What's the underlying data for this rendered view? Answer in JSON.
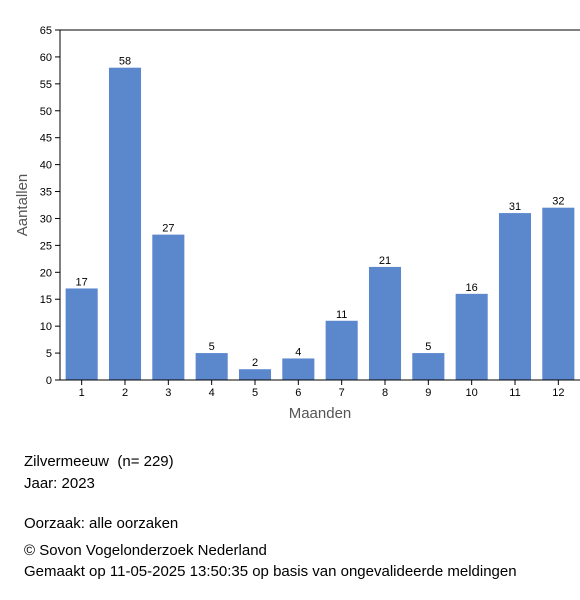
{
  "chart_data": {
    "type": "bar",
    "xlabel": "Maanden",
    "ylabel": "Aantallen",
    "categories": [
      "1",
      "2",
      "3",
      "4",
      "5",
      "6",
      "7",
      "8",
      "9",
      "10",
      "11",
      "12"
    ],
    "values": [
      17,
      58,
      27,
      5,
      2,
      4,
      11,
      21,
      5,
      16,
      31,
      32
    ],
    "color": "#5b87cc",
    "ylim": [
      0,
      65
    ],
    "yticks": [
      0,
      5,
      10,
      15,
      20,
      25,
      30,
      35,
      40,
      45,
      50,
      55,
      60,
      65
    ],
    "data_labels": true
  },
  "footer": {
    "lines": [
      "Zilvermeeuw  (n= 229)",
      "Jaar: 2023",
      "Oorzaak: alle oorzaken",
      "© Sovon Vogelonderzoek Nederland",
      "Gemaakt op 11-05-2025 13:50:35 op basis van ongevalideerde meldingen"
    ]
  }
}
